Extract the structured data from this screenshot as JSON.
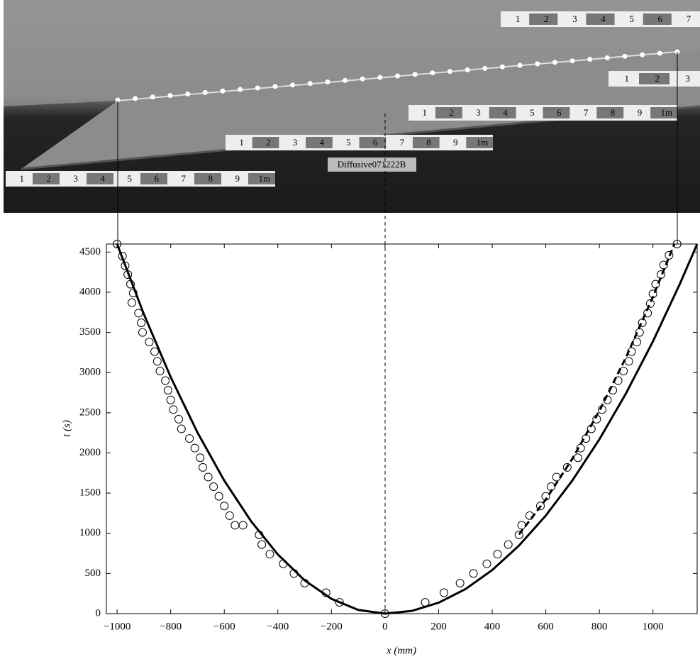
{
  "photo": {
    "label": "Diffusive071222B",
    "rulers": [
      {
        "labels": [
          "1",
          "2",
          "3",
          "4",
          "5",
          "6",
          "7"
        ]
      },
      {
        "labels": [
          "1",
          "2",
          "3"
        ]
      },
      {
        "labels": [
          "1",
          "2",
          "3",
          "4",
          "5",
          "6",
          "7",
          "8",
          "9",
          "1m"
        ]
      },
      {
        "labels": [
          "1",
          "2",
          "3",
          "4",
          "5",
          "6",
          "7",
          "8",
          "9",
          "1m"
        ]
      },
      {
        "labels": [
          "1",
          "2",
          "3",
          "4",
          "5",
          "6",
          "7",
          "8",
          "9",
          "1m"
        ]
      }
    ]
  },
  "chart_data": {
    "type": "line",
    "xlabel": "x (mm)",
    "ylabel": "t (s)",
    "xlim": [
      -1040,
      1165
    ],
    "ylim": [
      0,
      4600
    ],
    "xticks": [
      {
        "value": -1000,
        "label": "−1000"
      },
      {
        "value": -800,
        "label": "−800"
      },
      {
        "value": -600,
        "label": "−600"
      },
      {
        "value": -400,
        "label": "−400"
      },
      {
        "value": -200,
        "label": "−200"
      },
      0,
      200,
      400,
      600,
      800,
      1000
    ],
    "yticks": [
      0,
      500,
      1000,
      1500,
      2000,
      2500,
      3000,
      3500,
      4000,
      4500
    ],
    "series": [
      {
        "type": "line",
        "style": "solid",
        "color": "#000000",
        "x": [
          -1000,
          -900,
          -800,
          -700,
          -600,
          -500,
          -400,
          -300,
          -200,
          -100,
          0,
          100,
          200,
          300,
          400,
          500,
          600,
          700,
          800,
          900,
          1000,
          1100,
          1165
        ],
        "values": [
          4600,
          3726,
          2944,
          2254,
          1656,
          1150,
          736,
          414,
          184,
          46,
          0,
          34,
          136,
          305,
          542,
          847,
          1220,
          1661,
          2169,
          2745,
          3389,
          4101,
          4600
        ]
      },
      {
        "type": "line",
        "style": "dashed",
        "color": "#000000",
        "x": [
          500,
          600,
          700,
          800,
          900,
          1000,
          1080
        ],
        "values": [
          986,
          1420,
          1932,
          2524,
          3194,
          3944,
          4600
        ]
      },
      {
        "type": "scatter",
        "color": "#000000",
        "x": [
          -1000,
          -980,
          -970,
          -960,
          -950,
          -940,
          -945,
          -920,
          -910,
          -905,
          -880,
          -860,
          -850,
          -840,
          -820,
          -810,
          -800,
          -790,
          -770,
          -760,
          -730,
          -710,
          -690,
          -680,
          -660,
          -640,
          -620,
          -600,
          -580,
          -560,
          -530,
          -470,
          -460,
          -430,
          -380,
          -340,
          -300,
          -220,
          -170,
          0,
          150,
          220,
          280,
          330,
          380,
          420,
          460,
          500,
          510,
          540,
          580,
          600,
          620,
          640,
          680,
          720,
          730,
          750,
          770,
          790,
          810,
          830,
          850,
          870,
          890,
          910,
          920,
          940,
          950,
          960,
          980,
          990,
          1000,
          1010,
          1030,
          1040,
          1060,
          1090
        ],
        "values": [
          4600,
          4450,
          4330,
          4220,
          4100,
          3990,
          3870,
          3740,
          3620,
          3500,
          3380,
          3260,
          3140,
          3020,
          2900,
          2780,
          2660,
          2540,
          2420,
          2300,
          2180,
          2060,
          1940,
          1820,
          1700,
          1580,
          1460,
          1340,
          1220,
          1100,
          1100,
          980,
          860,
          740,
          620,
          500,
          380,
          260,
          140,
          0,
          140,
          260,
          380,
          500,
          620,
          740,
          860,
          980,
          1100,
          1220,
          1340,
          1460,
          1580,
          1700,
          1820,
          1940,
          2060,
          2180,
          2300,
          2420,
          2540,
          2660,
          2780,
          2900,
          3020,
          3140,
          3260,
          3380,
          3500,
          3620,
          3740,
          3860,
          3980,
          4100,
          4220,
          4340,
          4460,
          4600
        ]
      }
    ]
  }
}
